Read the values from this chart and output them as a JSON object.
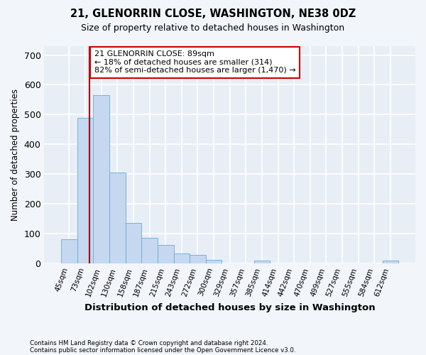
{
  "title1": "21, GLENORRIN CLOSE, WASHINGTON, NE38 0DZ",
  "title2": "Size of property relative to detached houses in Washington",
  "xlabel": "Distribution of detached houses by size in Washington",
  "ylabel": "Number of detached properties",
  "footnote1": "Contains HM Land Registry data © Crown copyright and database right 2024.",
  "footnote2": "Contains public sector information licensed under the Open Government Licence v3.0.",
  "property_line_label": "21 GLENORRIN CLOSE: 89sqm",
  "annotation_line1": "← 18% of detached houses are smaller (314)",
  "annotation_line2": "82% of semi-detached houses are larger (1,470) →",
  "bar_categories": [
    "45sqm",
    "73sqm",
    "102sqm",
    "130sqm",
    "158sqm",
    "187sqm",
    "215sqm",
    "243sqm",
    "272sqm",
    "300sqm",
    "329sqm",
    "357sqm",
    "385sqm",
    "414sqm",
    "442sqm",
    "470sqm",
    "499sqm",
    "527sqm",
    "555sqm",
    "584sqm",
    "612sqm"
  ],
  "bar_values": [
    80,
    490,
    565,
    305,
    135,
    85,
    62,
    32,
    27,
    12,
    0,
    0,
    10,
    0,
    0,
    0,
    0,
    0,
    0,
    0,
    10
  ],
  "bar_color": "#c5d8f0",
  "bar_edgecolor": "#6aabd2",
  "property_line_x": 1.25,
  "ylim": [
    0,
    730
  ],
  "yticks": [
    0,
    100,
    200,
    300,
    400,
    500,
    600,
    700
  ],
  "background_color": "#f2f5f9",
  "plot_background": "#e8eef5",
  "grid_color": "#ffffff",
  "annotation_box_facecolor": "#ffffff",
  "annotation_box_edgecolor": "#cc0000",
  "property_line_color": "#aa0000"
}
